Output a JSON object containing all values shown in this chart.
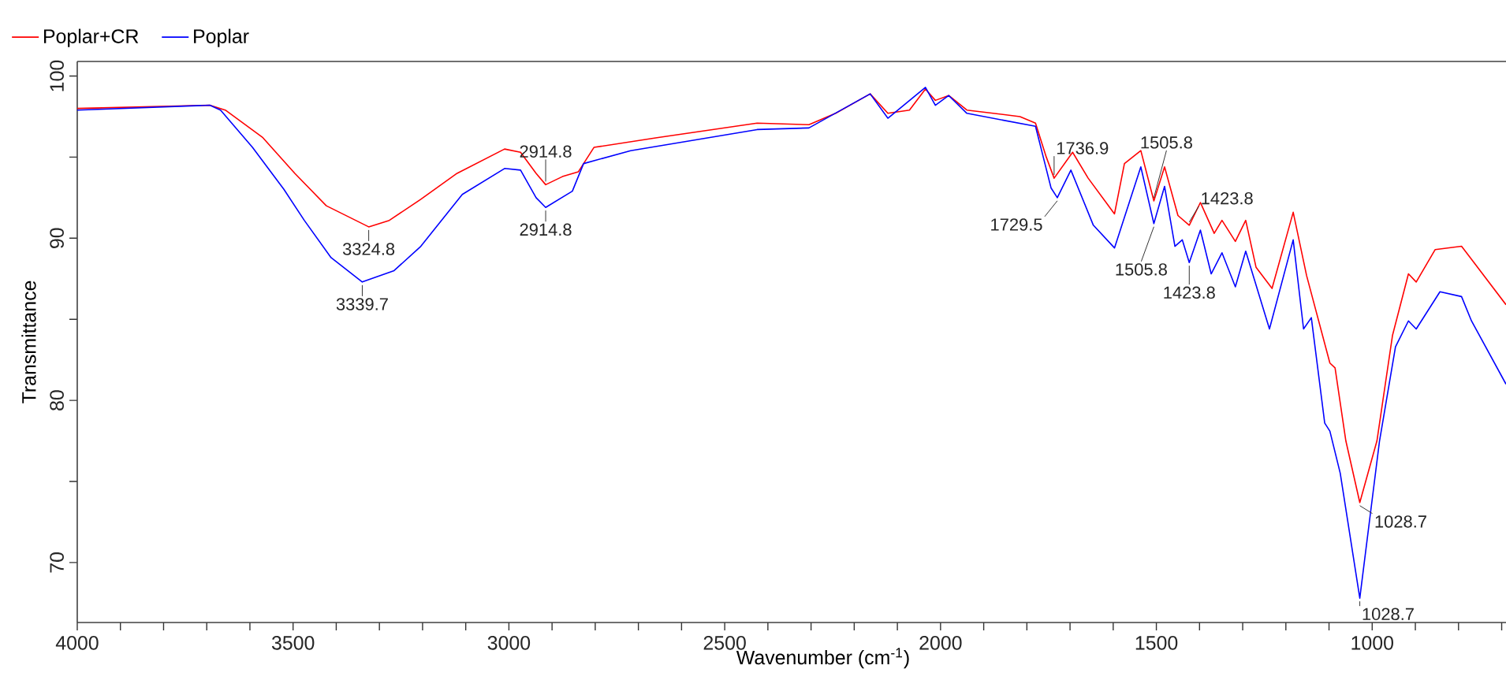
{
  "chart_data": {
    "type": "line",
    "xlabel": "Wavenumber (cm$^{-1}$)",
    "ylabel": "Transmittance",
    "xlim": [
      4000,
      690
    ],
    "ylim": [
      66.3,
      100.9
    ],
    "xticks": [
      4000,
      {
        "value": 3900,
        "label": null
      },
      {
        "value": 3800,
        "label": null
      },
      {
        "value": 3700,
        "label": null
      },
      {
        "value": 3600,
        "label": null
      },
      3500,
      {
        "value": 3400,
        "label": null
      },
      {
        "value": 3300,
        "label": null
      },
      {
        "value": 3200,
        "label": null
      },
      {
        "value": 3100,
        "label": null
      },
      3000,
      {
        "value": 2900,
        "label": null
      },
      {
        "value": 2800,
        "label": null
      },
      {
        "value": 2700,
        "label": null
      },
      {
        "value": 2600,
        "label": null
      },
      2500,
      {
        "value": 2400,
        "label": null
      },
      {
        "value": 2300,
        "label": null
      },
      {
        "value": 2200,
        "label": null
      },
      {
        "value": 2100,
        "label": null
      },
      2000,
      {
        "value": 1900,
        "label": null
      },
      {
        "value": 1800,
        "label": null
      },
      {
        "value": 1700,
        "label": null
      },
      {
        "value": 1600,
        "label": null
      },
      1500,
      {
        "value": 1400,
        "label": null
      },
      {
        "value": 1300,
        "label": null
      },
      {
        "value": 1200,
        "label": null
      },
      {
        "value": 1100,
        "label": null
      },
      1000,
      {
        "value": 900,
        "label": null
      },
      {
        "value": 800,
        "label": null
      },
      {
        "value": 700,
        "label": null
      }
    ],
    "yticks": [
      70,
      {
        "value": 75,
        "label": null
      },
      80,
      {
        "value": 85,
        "label": null
      },
      90,
      {
        "value": 95,
        "label": null
      },
      100
    ],
    "grid": false,
    "legend": "top",
    "marker": "none",
    "line_style": "solid",
    "series": [
      {
        "name": "Poplar+CR",
        "color": "#ff0000",
        "x": [
          4000,
          3693,
          3657,
          3570,
          3496,
          3423,
          3324.8,
          3277,
          3204,
          3120,
          3010,
          2973,
          2937,
          2914.8,
          2876,
          2839,
          2803,
          2657,
          2425,
          2305,
          2243,
          2163,
          2122,
          2072,
          2035,
          2012,
          1981,
          1939,
          1816,
          1780,
          1755,
          1736.9,
          1694,
          1658,
          1597,
          1574,
          1536,
          1505.8,
          1481,
          1450,
          1423.8,
          1398,
          1366,
          1348,
          1317,
          1293,
          1269,
          1232,
          1183,
          1152,
          1098,
          1086,
          1061,
          1028.7,
          989,
          953,
          916,
          898,
          854,
          793,
          770,
          690
        ],
        "values": [
          98.0,
          98.2,
          97.9,
          96.2,
          94.0,
          92.0,
          90.7,
          91.1,
          92.4,
          94.0,
          95.5,
          95.3,
          94.0,
          93.3,
          93.8,
          94.1,
          95.6,
          96.2,
          97.1,
          97.0,
          97.7,
          98.9,
          97.7,
          97.9,
          99.2,
          98.5,
          98.8,
          97.9,
          97.5,
          97.1,
          95.0,
          93.7,
          95.3,
          93.7,
          91.5,
          94.6,
          95.4,
          92.3,
          94.4,
          91.4,
          90.8,
          92.2,
          90.3,
          91.1,
          89.8,
          91.1,
          88.2,
          86.9,
          91.6,
          87.7,
          82.3,
          82.0,
          77.5,
          73.7,
          77.5,
          84.0,
          87.8,
          87.3,
          89.3,
          89.5,
          88.7,
          85.9
        ]
      },
      {
        "name": "Poplar",
        "color": "#0000ff",
        "x": [
          4000,
          3693,
          3668,
          3594,
          3521,
          3474,
          3412,
          3339.7,
          3266,
          3204,
          3108,
          3010,
          2973,
          2937,
          2914.8,
          2853,
          2827,
          2718,
          2425,
          2305,
          2163,
          2122,
          2035,
          2012,
          1981,
          1939,
          1780,
          1762,
          1744,
          1729.5,
          1698,
          1646,
          1597,
          1536,
          1505.8,
          1481,
          1457,
          1440,
          1423.8,
          1398,
          1373,
          1348,
          1317,
          1293,
          1238,
          1183,
          1159,
          1141,
          1110,
          1098,
          1074,
          1028.7,
          983,
          946,
          916,
          898,
          843,
          793,
          770,
          690
        ],
        "values": [
          97.9,
          98.2,
          97.9,
          95.6,
          93.0,
          91.1,
          88.8,
          87.3,
          88.0,
          89.5,
          92.7,
          94.3,
          94.2,
          92.5,
          91.9,
          92.9,
          94.6,
          95.4,
          96.7,
          96.8,
          98.9,
          97.4,
          99.3,
          98.2,
          98.8,
          97.7,
          96.9,
          95.0,
          93.1,
          92.5,
          94.2,
          90.8,
          89.4,
          94.4,
          90.9,
          93.2,
          89.5,
          89.9,
          88.5,
          90.5,
          87.8,
          89.1,
          87.0,
          89.2,
          84.4,
          89.9,
          84.4,
          85.1,
          78.6,
          78.1,
          75.5,
          67.8,
          77.5,
          83.3,
          84.9,
          84.4,
          86.7,
          86.4,
          84.9,
          81.0
        ]
      }
    ],
    "annotations": [
      {
        "text": "3324.8",
        "x": 3324.8,
        "y": 90.7
      },
      {
        "text": "2914.8",
        "x": 2914.8,
        "y": 93.3
      },
      {
        "text": "1736.9",
        "x": 1736.9,
        "y": 93.7
      },
      {
        "text": "1505.8",
        "x": 1505.8,
        "y": 92.3
      },
      {
        "text": "1423.8",
        "x": 1423.8,
        "y": 90.8
      },
      {
        "text": "1028.7",
        "x": 1028.7,
        "y": 73.7
      },
      {
        "text": "3339.7",
        "x": 3339.7,
        "y": 87.3
      },
      {
        "text": "2914.8",
        "x": 2914.8,
        "y": 91.9
      },
      {
        "text": "1729.5",
        "x": 1729.5,
        "y": 92.5
      },
      {
        "text": "1505.8",
        "x": 1505.8,
        "y": 90.9
      },
      {
        "text": "1423.8",
        "x": 1423.8,
        "y": 88.5
      },
      {
        "text": "1028.7",
        "x": 1028.7,
        "y": 67.8
      }
    ]
  }
}
